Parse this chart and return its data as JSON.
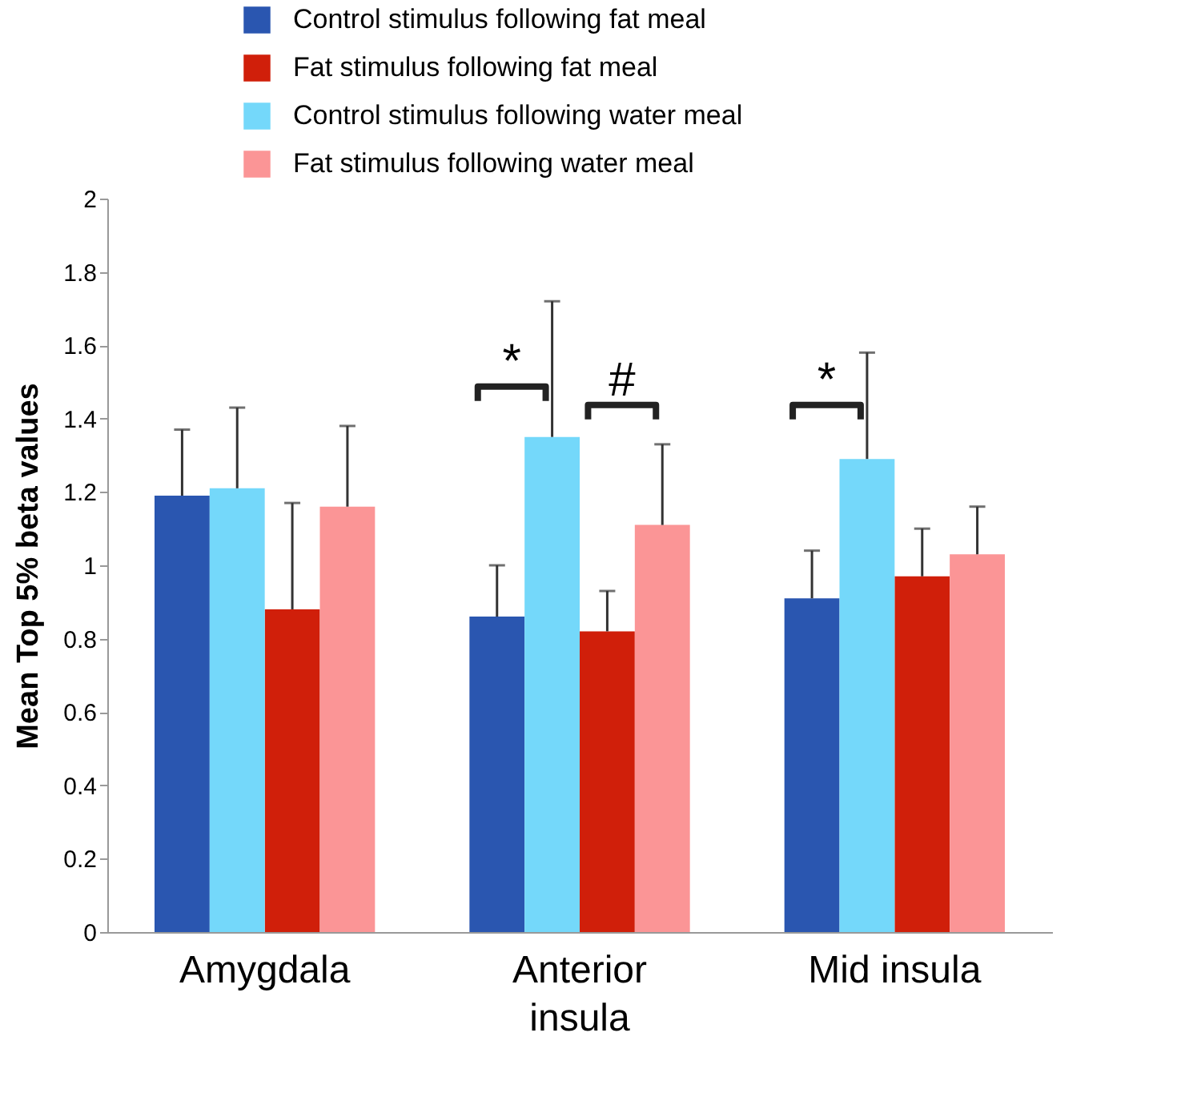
{
  "chart_data": {
    "type": "bar",
    "ylabel": "Mean Top 5% beta values",
    "categories": [
      "Amygdala",
      "Anterior\ninsula",
      "Mid insula"
    ],
    "series": [
      {
        "name": "Control stimulus following fat meal",
        "color": "#2a56b0",
        "values": [
          1.19,
          0.86,
          0.91
        ],
        "errors": [
          [
            1.19,
            1.37
          ],
          [
            0.86,
            1.0
          ],
          [
            0.91,
            1.04
          ]
        ]
      },
      {
        "name": "Fat stimulus following fat meal",
        "color": "#d01f0a",
        "values": [
          0.88,
          0.82,
          0.97
        ],
        "errors": [
          [
            0.88,
            1.17
          ],
          [
            0.82,
            0.93
          ],
          [
            0.97,
            1.1
          ]
        ]
      },
      {
        "name": "Control stimulus following water meal",
        "color": "#74d8fa",
        "values": [
          1.21,
          1.35,
          1.29
        ],
        "errors": [
          [
            1.21,
            1.43
          ],
          [
            1.35,
            1.72
          ],
          [
            1.29,
            1.58
          ]
        ]
      },
      {
        "name": "Fat stimulus following water meal",
        "color": "#fb9596",
        "values": [
          1.16,
          1.11,
          1.03
        ],
        "errors": [
          [
            1.16,
            1.38
          ],
          [
            1.11,
            1.33
          ],
          [
            1.03,
            1.16
          ]
        ]
      }
    ],
    "ylim": [
      0,
      2
    ],
    "yticks": [
      0,
      0.2,
      0.4,
      0.6,
      0.8,
      1,
      1.2,
      1.4,
      1.6,
      1.8,
      2
    ],
    "legend": "top",
    "annotations": [
      "*",
      "#",
      "*"
    ]
  }
}
